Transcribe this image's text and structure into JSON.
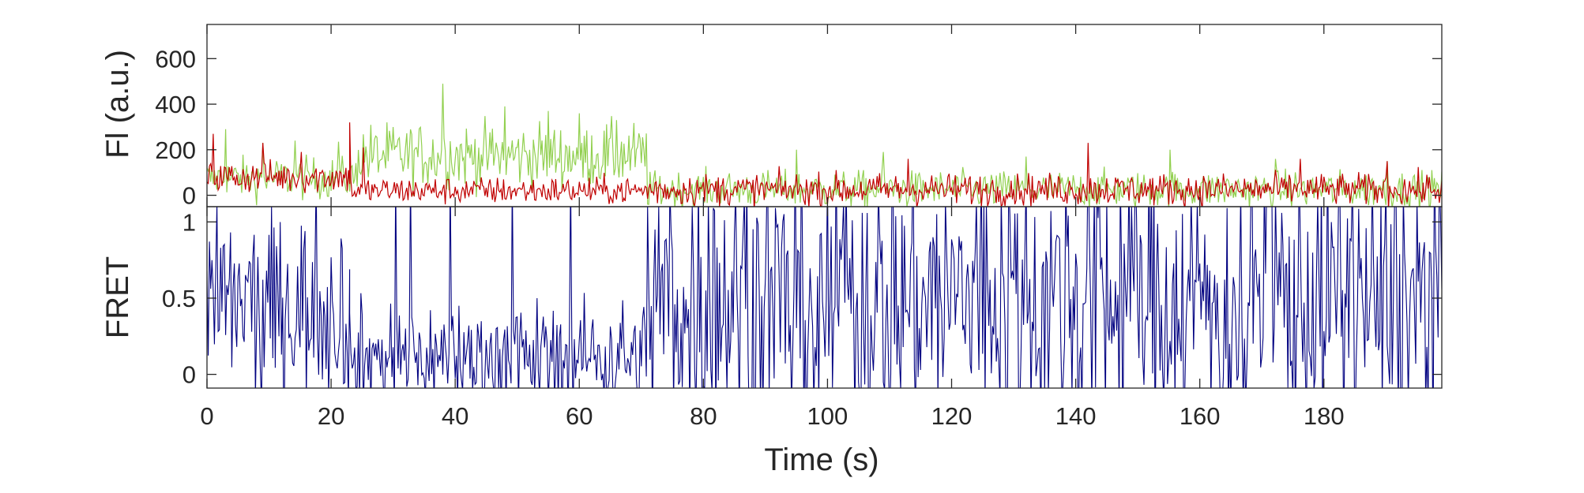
{
  "chart_data": [
    {
      "type": "line",
      "panel": "top",
      "title": "",
      "xlabel": "",
      "ylabel": "Fl (a.u.)",
      "xlim": [
        0,
        199
      ],
      "ylim": [
        -50,
        750
      ],
      "yticks": [
        0,
        200,
        400,
        600
      ],
      "grid": false,
      "series": [
        {
          "color": "#92d050",
          "segments": [
            {
              "x0": 0,
              "x1": 24,
              "mean": 75,
              "noise": 45,
              "spikes": [
                [
                  3,
                  290
                ],
                [
                  9,
                  230
                ],
                [
                  14,
                  240
                ],
                [
                  21,
                  235
                ]
              ]
            },
            {
              "x0": 24,
              "x1": 71,
              "mean": 175,
              "noise": 70,
              "spikes": [
                [
                  38,
                  490
                ],
                [
                  48,
                  390
                ],
                [
                  55,
                  370
                ],
                [
                  60,
                  360
                ],
                [
                  66,
                  330
                ]
              ]
            },
            {
              "x0": 71,
              "x1": 199,
              "mean": 25,
              "noise": 40,
              "spikes": [
                [
                  95,
                  200
                ],
                [
                  109,
                  190
                ],
                [
                  132,
                  170
                ],
                [
                  155,
                  200
                ],
                [
                  172,
                  160
                ],
                [
                  190,
                  150
                ]
              ]
            }
          ]
        },
        {
          "color": "#c00000",
          "segments": [
            {
              "x0": 0,
              "x1": 23,
              "mean": 80,
              "noise": 35,
              "spikes": [
                [
                  1,
                  270
                ],
                [
                  9,
                  230
                ],
                [
                  15,
                  190
                ]
              ]
            },
            {
              "x0": 23,
              "x1": 71,
              "mean": 20,
              "noise": 30,
              "spikes": [
                [
                  23,
                  320
                ],
                [
                  25,
                  210
                ]
              ]
            },
            {
              "x0": 71,
              "x1": 199,
              "mean": 25,
              "noise": 35,
              "spikes": [
                [
                  113,
                  160
                ],
                [
                  142,
                  230
                ],
                [
                  176,
                  160
                ],
                [
                  190,
                  150
                ]
              ]
            }
          ]
        }
      ]
    },
    {
      "type": "line",
      "panel": "bottom",
      "title": "",
      "xlabel": "Time (s)",
      "ylabel": "FRET",
      "xlim": [
        0,
        199
      ],
      "ylim": [
        -0.09,
        1.1
      ],
      "xticks": [
        0,
        20,
        40,
        60,
        80,
        100,
        120,
        140,
        160,
        180
      ],
      "yticks": [
        0,
        0.5,
        1
      ],
      "ytick_labels": [
        "0",
        "0.5",
        "1"
      ],
      "grid": false,
      "series": [
        {
          "color": "#000080",
          "segments": [
            {
              "x0": 0,
              "x1": 23,
              "mean": 0.45,
              "noise": 0.3
            },
            {
              "x0": 23,
              "x1": 71,
              "mean": 0.12,
              "noise": 0.18
            },
            {
              "x0": 71,
              "x1": 199,
              "mean": 0.5,
              "noise": 0.45
            }
          ]
        }
      ]
    }
  ]
}
